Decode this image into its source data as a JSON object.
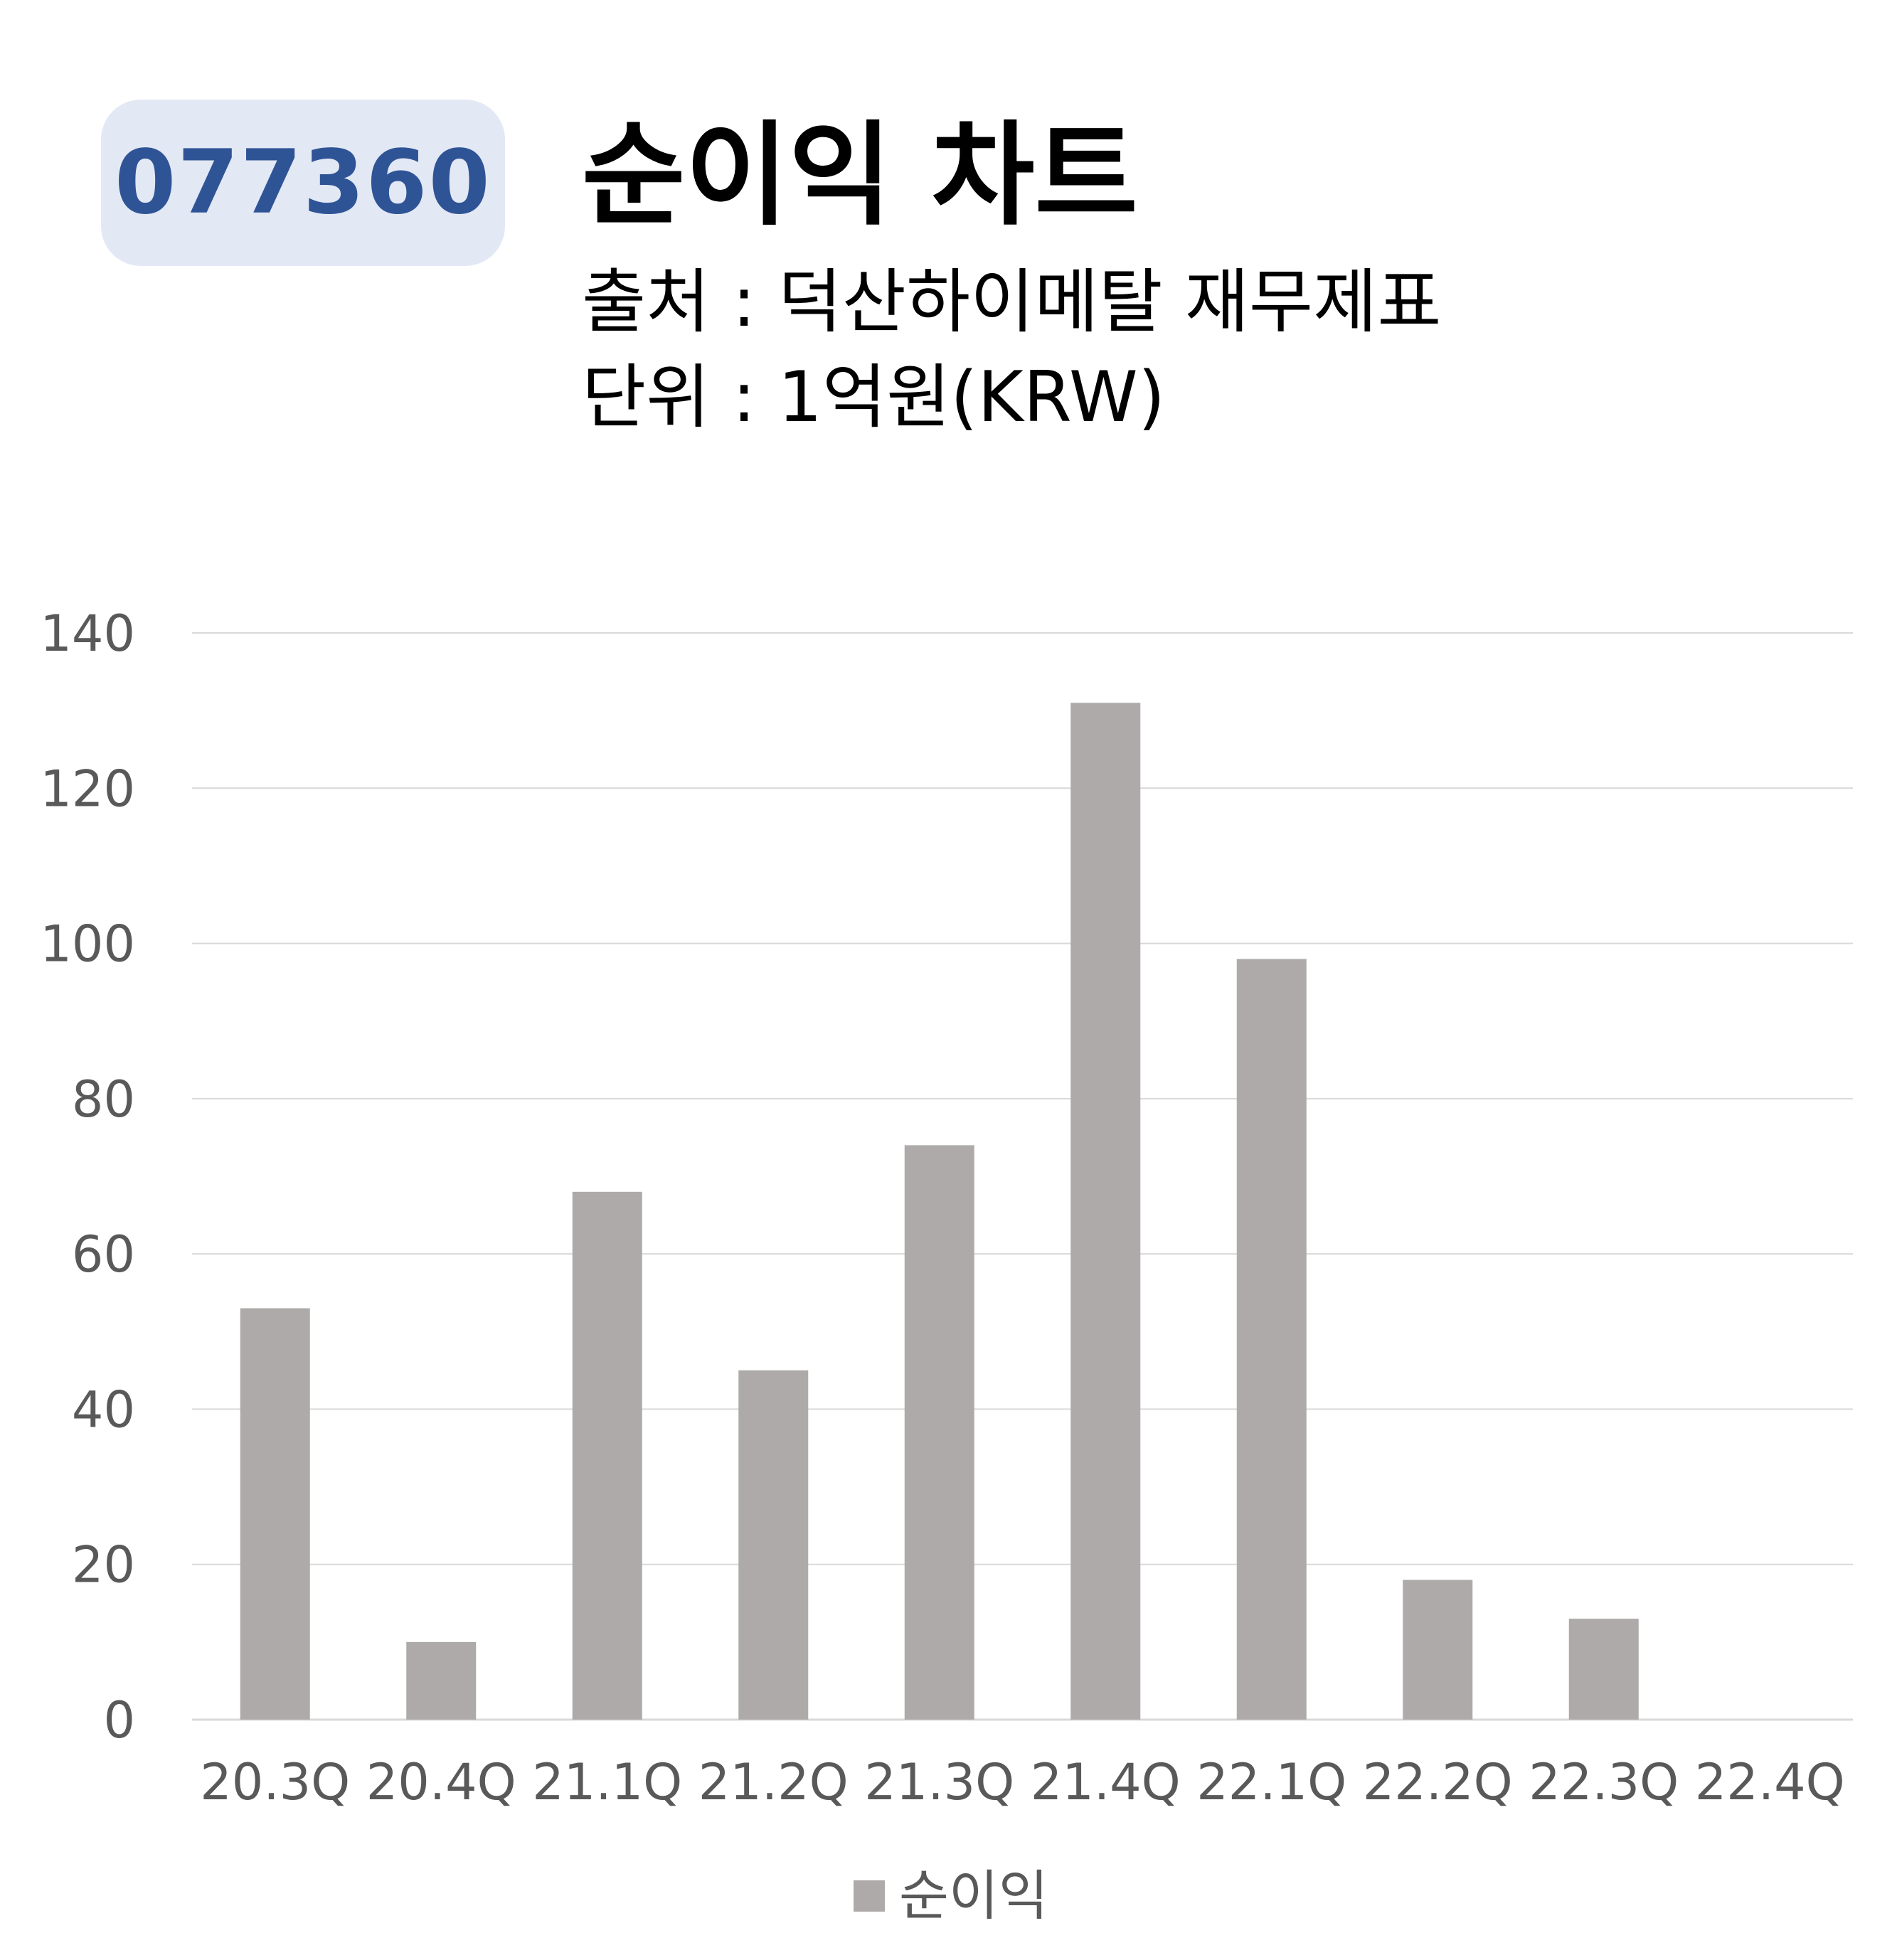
{
  "header": {
    "ticker": "077360",
    "title": "순이익 차트",
    "source": "출처 : 덕산하이메탈 재무제표",
    "unit": "단위 : 1억원(KRW)"
  },
  "chart_data": {
    "type": "bar",
    "categories": [
      "20.3Q",
      "20.4Q",
      "21.1Q",
      "21.2Q",
      "21.3Q",
      "21.4Q",
      "22.1Q",
      "22.2Q",
      "22.3Q",
      "22.4Q"
    ],
    "series": [
      {
        "name": "순이익",
        "values": [
          53,
          10,
          68,
          45,
          74,
          131,
          98,
          18,
          13,
          null
        ],
        "color": "#aeaaaa"
      }
    ],
    "yticks": [
      0,
      20,
      40,
      60,
      80,
      100,
      120,
      140
    ],
    "ylim": [
      0,
      140
    ],
    "grid": true,
    "legend": "bottom",
    "colors": {
      "grid": "#d9d9d9",
      "axis": "#d9d9d9",
      "tick_text": "#595959"
    }
  }
}
